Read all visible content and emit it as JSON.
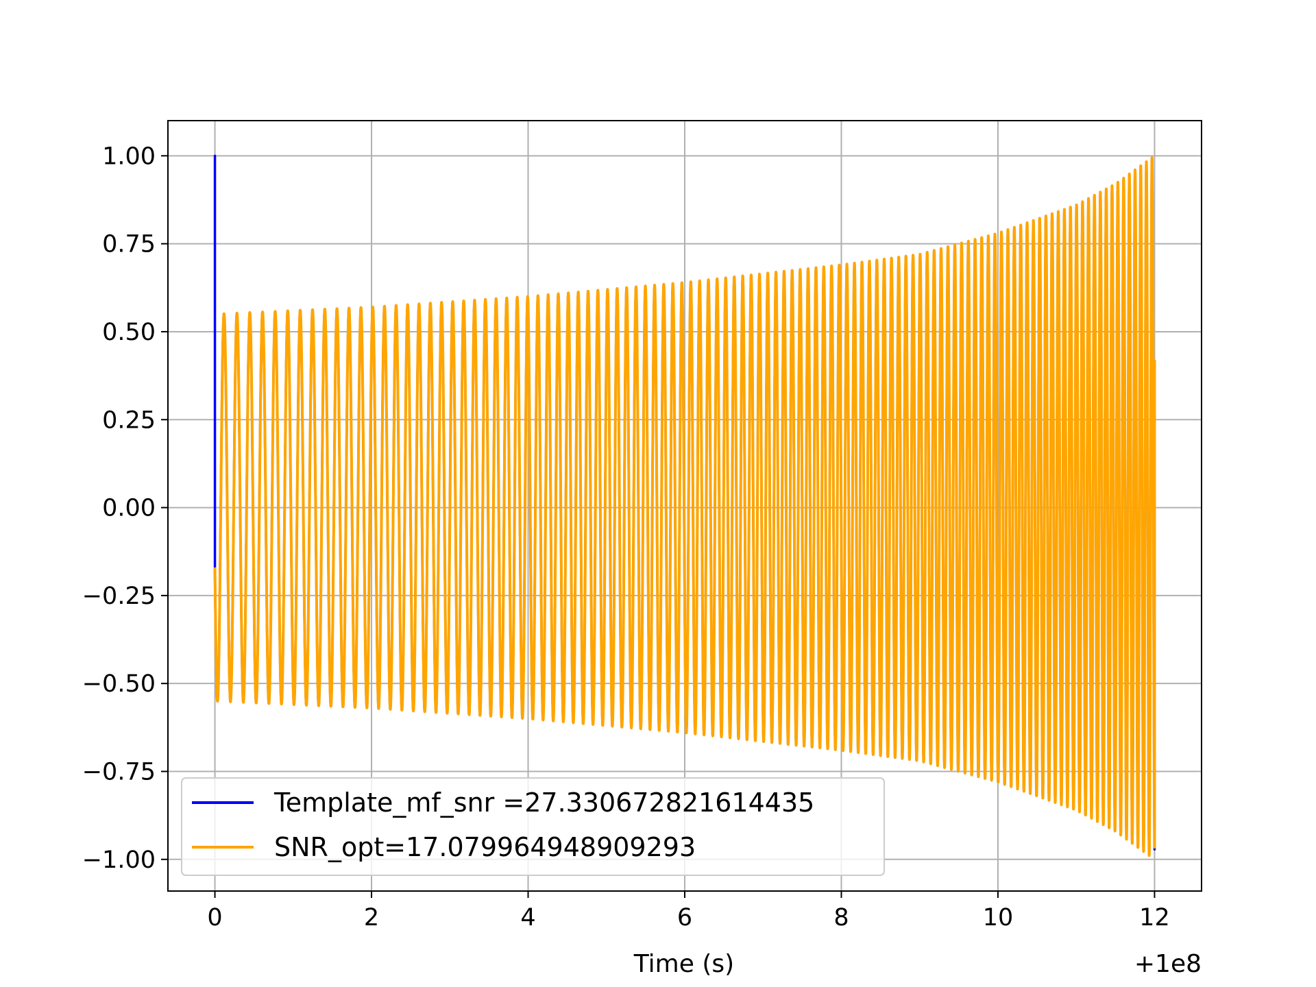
{
  "chart_data": {
    "type": "line",
    "title": "",
    "xlabel": "Time (s)",
    "ylabel": "",
    "x_offset_label": "+1e8",
    "xlim": [
      -0.6,
      12.6
    ],
    "ylim": [
      -1.09,
      1.1
    ],
    "xticks": [
      0,
      2,
      4,
      6,
      8,
      10,
      12
    ],
    "xtick_labels": [
      "0",
      "2",
      "4",
      "6",
      "8",
      "10",
      "12"
    ],
    "yticks": [
      1.0,
      0.75,
      0.5,
      0.25,
      0.0,
      -0.25,
      -0.5,
      -0.75,
      -1.0
    ],
    "ytick_labels": [
      "1.00",
      "0.75",
      "0.50",
      "0.25",
      "0.00",
      "−0.25",
      "−0.50",
      "−0.75",
      "−1.00"
    ],
    "grid": true,
    "legend_position": "lower-left",
    "series": [
      {
        "name": "Template_mf_snr =27.330672821614435",
        "color": "#0000ff",
        "shape": "chirp",
        "x_range": [
          0,
          12.0
        ],
        "spike_at_start": 1.0,
        "envelope": [
          [
            0,
            0.55
          ],
          [
            2,
            0.57
          ],
          [
            4,
            0.6
          ],
          [
            6,
            0.64
          ],
          [
            8,
            0.69
          ],
          [
            9,
            0.72
          ],
          [
            10,
            0.78
          ],
          [
            11,
            0.86
          ],
          [
            11.5,
            0.92
          ],
          [
            12,
            1.0
          ]
        ]
      },
      {
        "name": "SNR_opt=17.079964948909293",
        "color": "#ffa500",
        "shape": "chirp",
        "x_range": [
          0,
          12.0
        ],
        "envelope": [
          [
            0,
            0.55
          ],
          [
            2,
            0.57
          ],
          [
            4,
            0.6
          ],
          [
            6,
            0.64
          ],
          [
            8,
            0.69
          ],
          [
            9,
            0.72
          ],
          [
            10,
            0.78
          ],
          [
            11,
            0.86
          ],
          [
            11.5,
            0.92
          ],
          [
            12,
            1.0
          ]
        ]
      }
    ]
  }
}
